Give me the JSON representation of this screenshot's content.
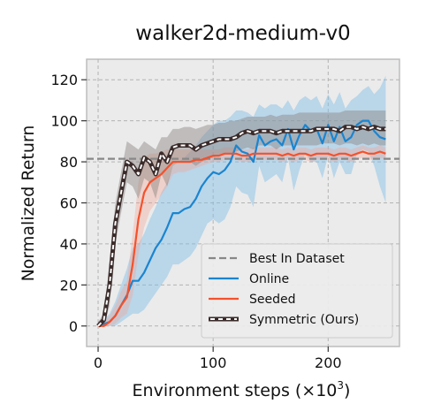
{
  "chart_data": {
    "type": "line",
    "title": "walker2d-medium-v0",
    "xlabel": "Environment steps",
    "xlabel_unit": "(×10",
    "xlabel_exp": "3",
    "xlabel_close": ")",
    "ylabel": "Normalized Return",
    "xlim": [
      -10,
      262
    ],
    "ylim": [
      -10,
      130
    ],
    "xticks": [
      0,
      100,
      200
    ],
    "yticks": [
      0,
      20,
      40,
      60,
      80,
      100,
      120
    ],
    "xtick_labels": [
      "0",
      "100",
      "200"
    ],
    "ytick_labels": [
      "0",
      "20",
      "40",
      "60",
      "80",
      "100",
      "120"
    ],
    "grid": true,
    "legend_position": "lower-right",
    "reference_line": {
      "name": "Best In Dataset",
      "y": 81.5,
      "color": "#888888"
    },
    "x": [
      0,
      5,
      10,
      15,
      20,
      25,
      30,
      35,
      40,
      45,
      50,
      55,
      60,
      65,
      70,
      75,
      80,
      85,
      90,
      95,
      100,
      105,
      110,
      115,
      120,
      125,
      130,
      135,
      140,
      145,
      150,
      155,
      160,
      165,
      170,
      175,
      180,
      185,
      190,
      195,
      200,
      205,
      210,
      215,
      220,
      225,
      230,
      235,
      240,
      245,
      250
    ],
    "series": [
      {
        "name": "Online",
        "color": "#1a85d0",
        "values": [
          0,
          1,
          2,
          5,
          10,
          15,
          22,
          22,
          26,
          32,
          38,
          42,
          48,
          55,
          55,
          57,
          58,
          62,
          68,
          72,
          75,
          74,
          76,
          80,
          88,
          85,
          84,
          80,
          93,
          88,
          90,
          91,
          88,
          96,
          86,
          93,
          98,
          95,
          96,
          89,
          98,
          90,
          97,
          90,
          92,
          98,
          100,
          100,
          95,
          92,
          91
        ],
        "upper": [
          1,
          3,
          6,
          12,
          20,
          28,
          38,
          40,
          45,
          52,
          58,
          65,
          70,
          78,
          80,
          82,
          85,
          88,
          92,
          95,
          98,
          100,
          100,
          102,
          105,
          105,
          104,
          102,
          108,
          106,
          108,
          108,
          106,
          110,
          105,
          110,
          112,
          110,
          112,
          106,
          113,
          108,
          114,
          106,
          110,
          112,
          115,
          117,
          113,
          116,
          122
        ],
        "lower": [
          0,
          0,
          0,
          0,
          2,
          4,
          6,
          6,
          8,
          12,
          16,
          20,
          24,
          30,
          30,
          32,
          34,
          38,
          44,
          50,
          52,
          50,
          52,
          58,
          68,
          65,
          64,
          58,
          78,
          70,
          72,
          74,
          70,
          82,
          66,
          76,
          84,
          80,
          80,
          72,
          83,
          72,
          80,
          74,
          74,
          84,
          86,
          85,
          78,
          68,
          60
        ]
      },
      {
        "name": "Seeded",
        "color": "#f4512c",
        "values": [
          0,
          0,
          2,
          5,
          10,
          14,
          30,
          52,
          65,
          70,
          72,
          74,
          77,
          80,
          80,
          80,
          80,
          81,
          81,
          82,
          83,
          83,
          84,
          84,
          84,
          83,
          83,
          84,
          84,
          84,
          84,
          84,
          83,
          84,
          83,
          84,
          84,
          83,
          84,
          84,
          84,
          83,
          84,
          84,
          83,
          84,
          85,
          84,
          84,
          85,
          84
        ],
        "upper": [
          1,
          2,
          5,
          10,
          17,
          22,
          45,
          70,
          82,
          84,
          84,
          85,
          86,
          86,
          86,
          86,
          86,
          86,
          86,
          86,
          86,
          86,
          87,
          87,
          87,
          86,
          86,
          87,
          87,
          87,
          87,
          87,
          86,
          87,
          86,
          87,
          87,
          86,
          87,
          87,
          87,
          86,
          87,
          87,
          86,
          87,
          88,
          87,
          87,
          88,
          87
        ],
        "lower": [
          0,
          0,
          0,
          1,
          4,
          6,
          15,
          35,
          48,
          56,
          60,
          64,
          68,
          74,
          75,
          75,
          76,
          77,
          78,
          79,
          80,
          80,
          81,
          81,
          81,
          80,
          80,
          81,
          81,
          81,
          81,
          81,
          80,
          81,
          80,
          81,
          81,
          80,
          81,
          81,
          81,
          80,
          81,
          81,
          80,
          81,
          82,
          81,
          81,
          82,
          81
        ]
      },
      {
        "name": "Symmetric (Ours)",
        "color": "#3a2b2a",
        "values": [
          0,
          3,
          20,
          50,
          65,
          80,
          78,
          74,
          82,
          80,
          74,
          84,
          80,
          87,
          88,
          88,
          88,
          86,
          88,
          89,
          90,
          91,
          91,
          91,
          92,
          94,
          95,
          94,
          95,
          95,
          95,
          94,
          95,
          95,
          95,
          95,
          95,
          95,
          96,
          96,
          96,
          96,
          95,
          97,
          97,
          96,
          97,
          96,
          97,
          96,
          96
        ],
        "upper": [
          2,
          6,
          30,
          60,
          75,
          90,
          88,
          86,
          90,
          88,
          86,
          92,
          92,
          96,
          96,
          97,
          97,
          96,
          97,
          98,
          98,
          99,
          99,
          100,
          100,
          101,
          102,
          102,
          102,
          102,
          103,
          102,
          103,
          103,
          103,
          104,
          104,
          104,
          104,
          104,
          104,
          104,
          104,
          105,
          105,
          105,
          105,
          105,
          105,
          105,
          105
        ],
        "lower": [
          0,
          0,
          10,
          40,
          55,
          70,
          68,
          62,
          72,
          70,
          62,
          74,
          68,
          78,
          80,
          80,
          80,
          78,
          80,
          81,
          82,
          83,
          84,
          84,
          85,
          86,
          87,
          86,
          88,
          88,
          88,
          86,
          88,
          88,
          88,
          88,
          88,
          88,
          88,
          89,
          89,
          89,
          88,
          89,
          89,
          88,
          89,
          88,
          89,
          88,
          88
        ]
      }
    ],
    "legend": [
      {
        "label": "Best In Dataset",
        "style": "dashed",
        "color": "#888888"
      },
      {
        "label": "Online",
        "style": "solid",
        "color": "#1a85d0"
      },
      {
        "label": "Seeded",
        "style": "solid",
        "color": "#f4512c"
      },
      {
        "label": "Symmetric (Ours)",
        "style": "symmetric",
        "color": "#3a2b2a"
      }
    ]
  }
}
